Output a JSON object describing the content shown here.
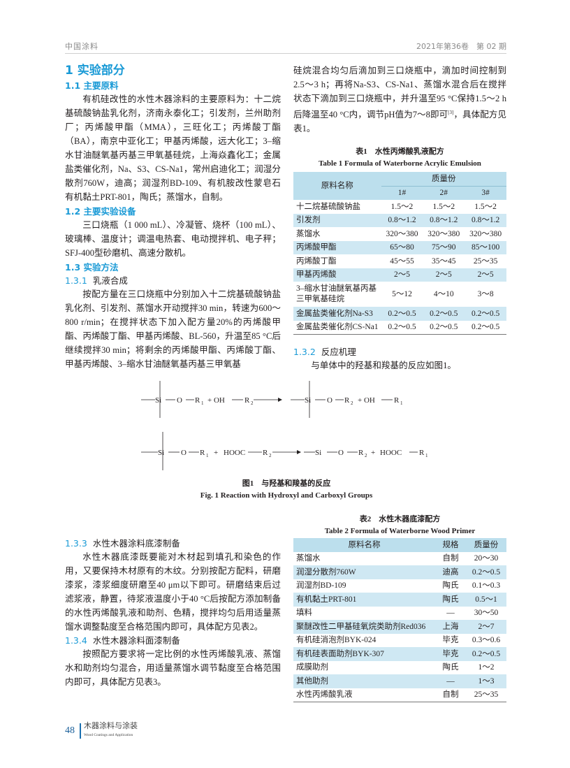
{
  "header": {
    "journal": "中国涂料",
    "issue": "2021年第36卷　第 02 期"
  },
  "s1": {
    "title": "1  实验部分"
  },
  "s11": {
    "title": "1.1  主要原料",
    "text": "有机硅改性的水性木器涂料的主要原料为：十二烷基硫酸钠盐乳化剂，济南永泰化工；引发剂，兰州助剂厂；丙烯酸甲酯（MMA），三旺化工；丙烯酸丁酯（BA），南京中亚化工；甲基丙烯酸，远大化工；3–缩水甘油醚氧基丙基三甲氧基硅烷，上海焱鑫化工；金属盐类催化剂，Na、S3、CS-Na1，常州启迪化工；润湿分散剂760W，迪高；润湿剂BD-109、有机胺改性蒙皂石有机黏土PRT-801，陶氏；蒸馏水，自制。"
  },
  "s12": {
    "title": "1.2  主要实验设备",
    "text": "三口烧瓶（1 000 mL）、冷凝管、烧杯（100 mL）、玻璃棒、温度计；调温电热套、电动搅拌机、电子秤；SFJ-400型砂磨机、高速分散机。"
  },
  "s13": {
    "title": "1.3  实验方法"
  },
  "s131": {
    "num": "1.3.1",
    "title": "乳液合成",
    "text_a": "按配方量在三口烧瓶中分别加入十二烷基硫酸钠盐乳化剂、引发剂、蒸馏水开动搅拌30 min，转速为600～800 r/min；在搅拌状态下加入配方量20%的丙烯酸甲酯、丙烯酸丁酯、甲基丙烯酸、BL-560，升温至85 °C后继续搅拌30 min；将剩余的丙烯酸甲酯、丙烯酸丁酯、甲基丙烯酸、3–缩水甘油醚氧基丙基三甲氧基",
    "text_b": "硅烷混合均匀后滴加到三口烧瓶中，滴加时间控制到2.5～3 h；再将Na-S3、CS-Na1、蒸馏水混合后在搅拌状态下滴加到三口烧瓶中，并升温至95 °C保持1.5～2 h后降温至40 °C内，调节pH值为7～8即可",
    "ref": "[3]",
    "text_c": "，具体配方见表1。"
  },
  "table1": {
    "caption_cn": "表1　水性丙烯酸乳液配方",
    "caption_en": "Table 1   Formula of Waterborne Acrylic Emulsion",
    "col_name": "原料名称",
    "col_group": "质量份",
    "cols": [
      "1#",
      "2#",
      "3#"
    ],
    "rows": [
      [
        "十二烷基硫酸钠盐",
        "1.5～2",
        "1.5～2",
        "1.5～2"
      ],
      [
        "引发剂",
        "0.8～1.2",
        "0.8～1.2",
        "0.8～1.2"
      ],
      [
        "蒸馏水",
        "320～380",
        "320～380",
        "320～380"
      ],
      [
        "丙烯酸甲酯",
        "65～80",
        "75～90",
        "85～100"
      ],
      [
        "丙烯酸丁酯",
        "45～55",
        "35～45",
        "25～35"
      ],
      [
        "甲基丙烯酸",
        "2～5",
        "2～5",
        "2～5"
      ],
      [
        "3–缩水甘油醚氧基丙基三甲氧基硅烷",
        "5～12",
        "4～10",
        "3～8"
      ],
      [
        "金属盐类催化剂Na-S3",
        "0.2～0.5",
        "0.2～0.5",
        "0.2～0.5"
      ],
      [
        "金属盐类催化剂CS-Na1",
        "0.2～0.5",
        "0.2～0.5",
        "0.2～0.5"
      ]
    ]
  },
  "s132": {
    "num": "1.3.2",
    "title": "反应机理",
    "text": "与单体中的羟基和羧基的反应如图1。"
  },
  "figure1": {
    "caption_cn": "图1　与羟基和羧基的反应",
    "caption_en": "Fig. 1   Reaction with Hydroxyl and Carboxyl Groups",
    "row1": [
      "Si",
      "O",
      "R",
      "1",
      "+ OH",
      "R",
      "2",
      "Si",
      "O",
      "R",
      "2",
      "+ OH",
      "R",
      "1"
    ],
    "row2": [
      "Si",
      "O",
      "R",
      "1",
      "+",
      "HOOC",
      "R",
      "2",
      "Si",
      "O",
      "R",
      "2",
      "+",
      "HOOC",
      "R",
      "1"
    ]
  },
  "s133": {
    "num": "1.3.3",
    "title": "水性木器涂料底漆制备",
    "text": "水性木器底漆既要能对木材起到填孔和染色的作用，又要保持木材原有的木纹。分别按配方配料，研磨漆浆，漆浆细度研磨至40 μm以下即可。研磨结束后过滤浆液，静置，待浆液温度小于40 °C后按配方添加制备的水性丙烯酸乳液和助剂、色精，搅拌均匀后用适量蒸馏水调整黏度至合格范围内即可，具体配方见表2。"
  },
  "s134": {
    "num": "1.3.4",
    "title": "水性木器涂料面漆制备",
    "text": "按照配方要求将一定比例的水性丙烯酸乳液、蒸馏水和助剂均匀混合，用适量蒸馏水调节黏度至合格范围内即可，具体配方见表3。"
  },
  "table2": {
    "caption_cn": "表2　水性木器底漆配方",
    "caption_en": "Table 2   Formula of Waterborne Wood Primer",
    "cols": [
      "原料名称",
      "规格",
      "质量份"
    ],
    "rows": [
      [
        "蒸馏水",
        "自制",
        "20～30"
      ],
      [
        "润湿分散剂760W",
        "迪高",
        "0.2～0.5"
      ],
      [
        "润湿剂BD-109",
        "陶氏",
        "0.1～0.3"
      ],
      [
        "有机黏土PRT-801",
        "陶氏",
        "0.5～1"
      ],
      [
        "填料",
        "—",
        "30～50"
      ],
      [
        "聚醚改性二甲基硅氧烷类助剂Red036",
        "上海",
        "2～7"
      ],
      [
        "有机硅消泡剂BYK-024",
        "毕克",
        "0.3～0.6"
      ],
      [
        "有机硅表面助剂BYK-307",
        "毕克",
        "0.2～0.5"
      ],
      [
        "成膜助剂",
        "陶氏",
        "1～2"
      ],
      [
        "其他助剂",
        "—",
        "1～3"
      ],
      [
        "水性丙烯酸乳液",
        "自制",
        "25～35"
      ]
    ]
  },
  "footer": {
    "page": "48",
    "journal_cn": "木器涂料与涂装",
    "journal_en": "Wood Coatings and Application"
  },
  "colors": {
    "accent": "#1a9ad6",
    "table_stripe": "#cfe8f3"
  }
}
